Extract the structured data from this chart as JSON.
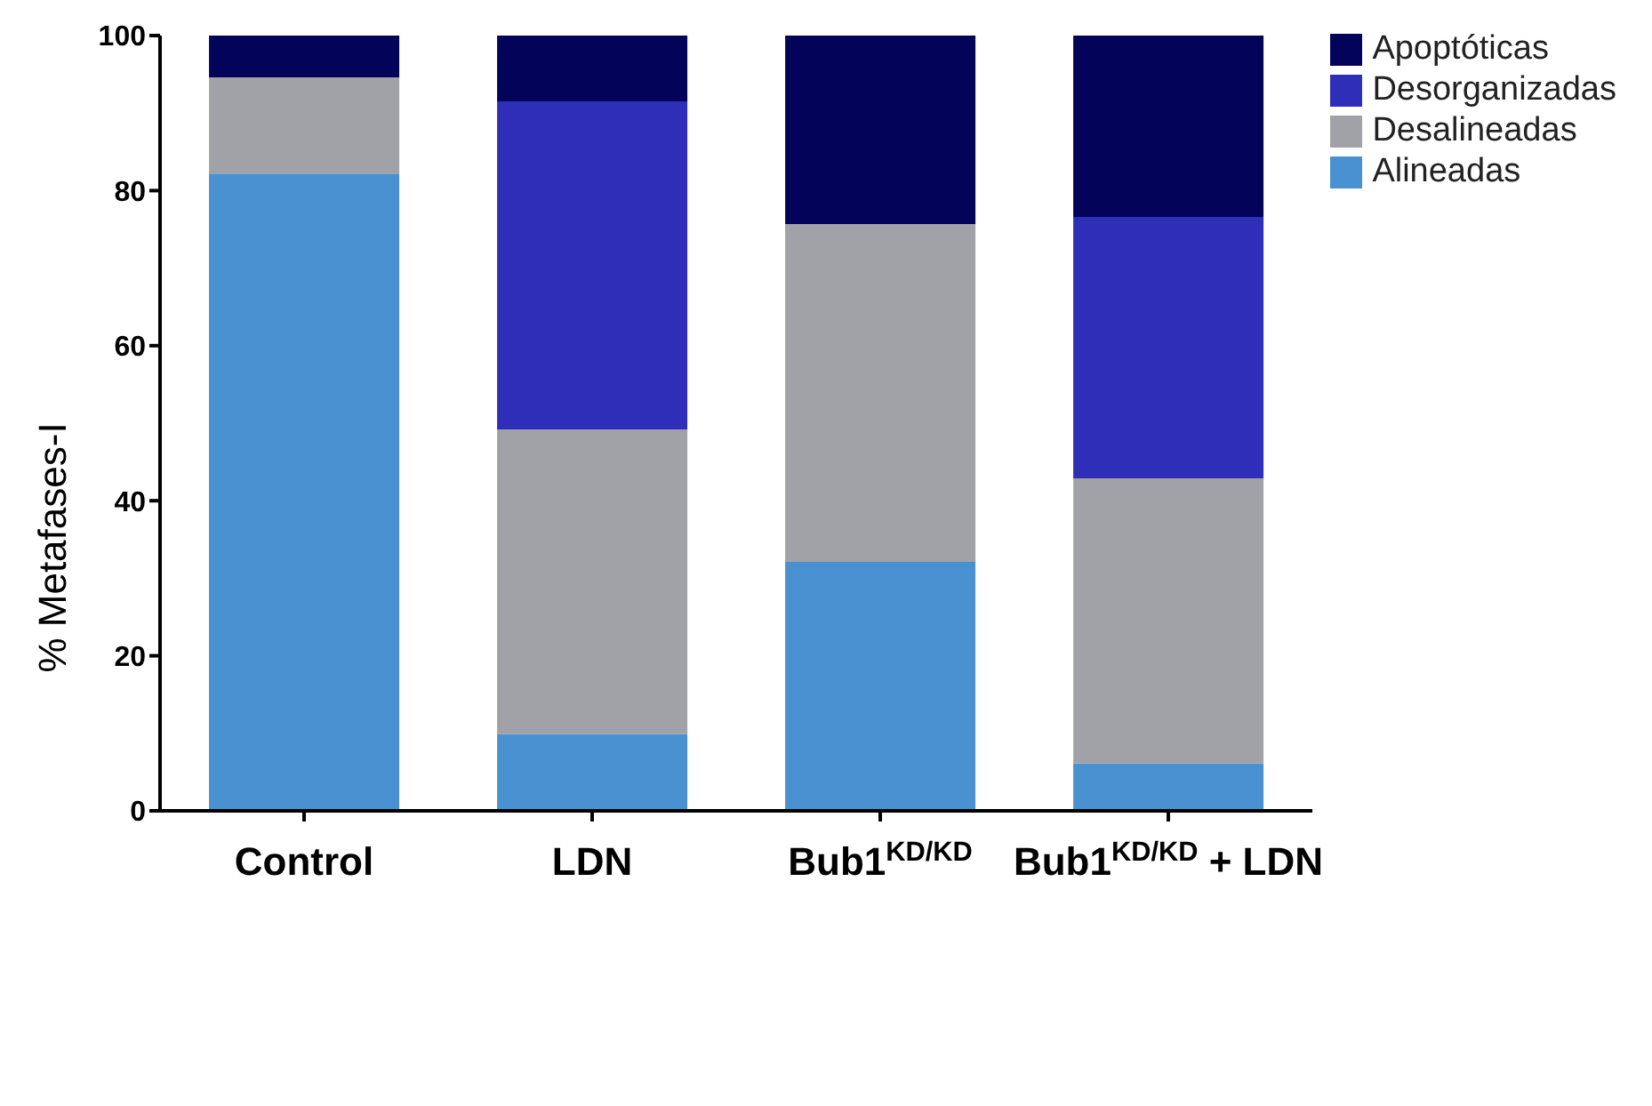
{
  "chart_data": {
    "type": "bar",
    "stacked": true,
    "ylabel": "% Metafases-I",
    "categories": [
      "Control",
      "LDN",
      "Bub1$^{KD/KD}$",
      "Bub1$^{KD/KD}$ + LDN"
    ],
    "series": [
      {
        "name": "Alineadas",
        "color": "#4a91d1",
        "values": [
          82.2,
          9.9,
          32.1,
          6.1
        ]
      },
      {
        "name": "Desalineadas",
        "color": "#a1a1a8",
        "values": [
          12.4,
          39.3,
          43.6,
          36.8
        ]
      },
      {
        "name": "Desorganizadas",
        "color": "#2e2eb8",
        "values": [
          0,
          42.3,
          0,
          33.7
        ]
      },
      {
        "name": "Apoptóticas",
        "color": "#03035a",
        "values": [
          5.4,
          8.5,
          24.3,
          23.4
        ]
      }
    ],
    "ylim": [
      0,
      100
    ],
    "yticks": [
      0,
      20,
      40,
      60,
      80,
      100
    ],
    "grid": false,
    "legend": "top right"
  }
}
